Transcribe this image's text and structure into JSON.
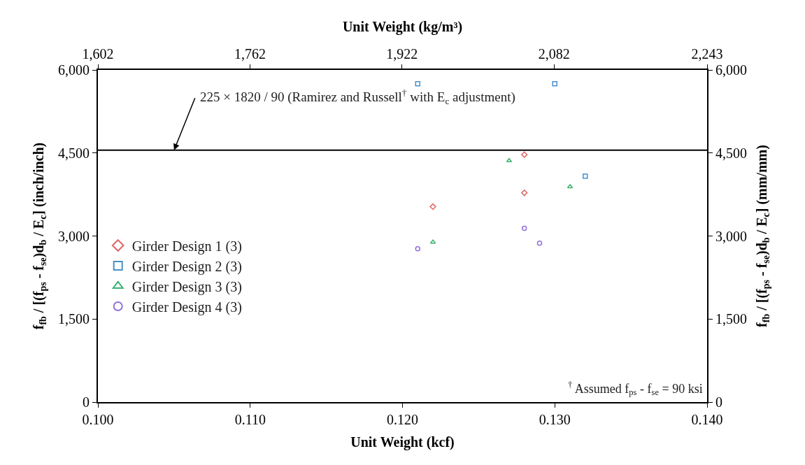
{
  "chart_data": {
    "type": "scatter",
    "xlabel": "Unit Weight (kcf)",
    "x2label": "Unit Weight (kg/m³)",
    "ylabel": "f$_{fb}$ / [(f$_{ps}$ - f$_{se}$)d$_{b}$ / E$_{c}$] (inch/inch)",
    "y2label": "f$_{fb}$ / [(f$_{ps}$ - f$_{se}$)d$_{b}$ / E$_{c}$] (mm/mm)",
    "xlim": [
      0.1,
      0.14
    ],
    "xticks": [
      {
        "value": 0.1,
        "label": "0.100"
      },
      {
        "value": 0.11,
        "label": "0.110"
      },
      {
        "value": 0.12,
        "label": "0.120"
      },
      {
        "value": 0.13,
        "label": "0.130"
      },
      {
        "value": 0.14,
        "label": "0.140"
      }
    ],
    "x2lim": [
      1602,
      2243
    ],
    "x2ticks": [
      {
        "value": 1602,
        "label": "1,602"
      },
      {
        "value": 1762,
        "label": "1,762"
      },
      {
        "value": 1922,
        "label": "1,922"
      },
      {
        "value": 2082,
        "label": "2,082"
      },
      {
        "value": 2243,
        "label": "2,243"
      }
    ],
    "ylim": [
      0,
      6000
    ],
    "yticks": [
      0,
      {
        "value": 1500,
        "label": "1,500"
      },
      {
        "value": 3000,
        "label": "3,000"
      },
      {
        "value": 4500,
        "label": "4,500"
      },
      {
        "value": 6000,
        "label": "6,000"
      }
    ],
    "y2lim": [
      0,
      6000
    ],
    "y2ticks": [
      0,
      {
        "value": 1500,
        "label": "1,500"
      },
      {
        "value": 3000,
        "label": "3,000"
      },
      {
        "value": 4500,
        "label": "4,500"
      },
      {
        "value": 6000,
        "label": "6,000"
      }
    ],
    "legend": "left",
    "series": [
      {
        "name": "Girder Design 1 (3)",
        "color": "#e06666",
        "marker": "diamond",
        "x": [
          0.128,
          0.128,
          0.122
        ],
        "values": [
          4470,
          3780,
          3530
        ]
      },
      {
        "name": "Girder Design 2 (3)",
        "color": "#4a90c8",
        "marker": "square",
        "x": [
          0.121,
          0.13,
          0.132
        ],
        "values": [
          5750,
          5750,
          4080
        ]
      },
      {
        "name": "Girder Design 3 (3)",
        "color": "#3cb371",
        "marker": "triangle",
        "x": [
          0.127,
          0.131,
          0.122
        ],
        "values": [
          4360,
          3890,
          2890
        ]
      },
      {
        "name": "Girder Design 4 (3)",
        "color": "#9370db",
        "marker": "circle",
        "x": [
          0.121,
          0.128,
          0.129
        ],
        "values": [
          2770,
          3140,
          2870
        ]
      }
    ],
    "ref_lines": [
      {
        "axis": "y",
        "value": 4550,
        "label": "225 × 1820 / 90 (Ramirez and Russell$^{†}$ with E$_{c}$ adjustment)",
        "color": "#000000",
        "line_style": "solid"
      }
    ],
    "annotations": [
      "$^{†}$ Assumed f$_{ps}$ - f$_{se}$ = 90 ksi"
    ]
  }
}
